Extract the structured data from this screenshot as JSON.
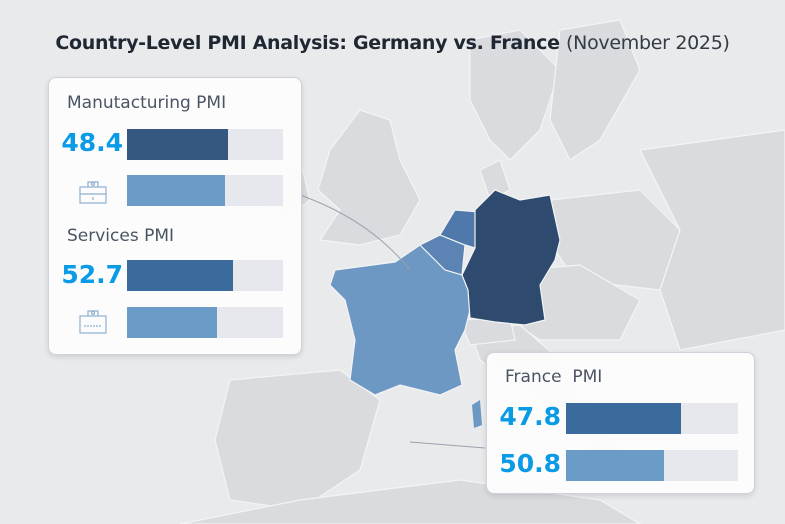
{
  "title": {
    "main": "Country-Level PMI Analysis: Germany vs. France",
    "sub": "(November 2025)"
  },
  "colors": {
    "germany": "#2e4a6e",
    "france": "#6d98c4",
    "benelux": "#5b84b4",
    "value_text": "#0a9be6",
    "dark_bar": "#36577f",
    "mid_bar": "#3b6a9c",
    "light_bar": "#6b9cc7",
    "track": "#e6e8ee"
  },
  "map": {
    "highlighted": [
      "Germany",
      "France",
      "Belgium",
      "Netherlands",
      "Luxembourg"
    ]
  },
  "germany_panel": {
    "manufacturing": {
      "label": "Manutacturing PMI",
      "value": "48.4",
      "icon": "factory-icon",
      "bar_fill": 0.65,
      "secondary_bar_fill": 0.63
    },
    "services": {
      "label": "Services PMI",
      "value": "52.7",
      "icon": "shopping-bag-icon",
      "bar_fill": 0.68,
      "secondary_bar_fill": 0.58
    }
  },
  "france_panel": {
    "label": "France  PMI",
    "values": [
      "47.8",
      "50.8"
    ],
    "bar_fills": [
      0.67,
      0.57
    ]
  },
  "chart_data": {
    "type": "bar",
    "title": "Country-Level PMI Analysis: Germany vs. France (November 2025)",
    "series": [
      {
        "name": "Manutacturing PMI",
        "values": [
          48.4
        ]
      },
      {
        "name": "Services PMI",
        "values": [
          52.7
        ]
      },
      {
        "name": "France  PMI",
        "values": [
          47.8,
          50.8
        ]
      }
    ]
  }
}
